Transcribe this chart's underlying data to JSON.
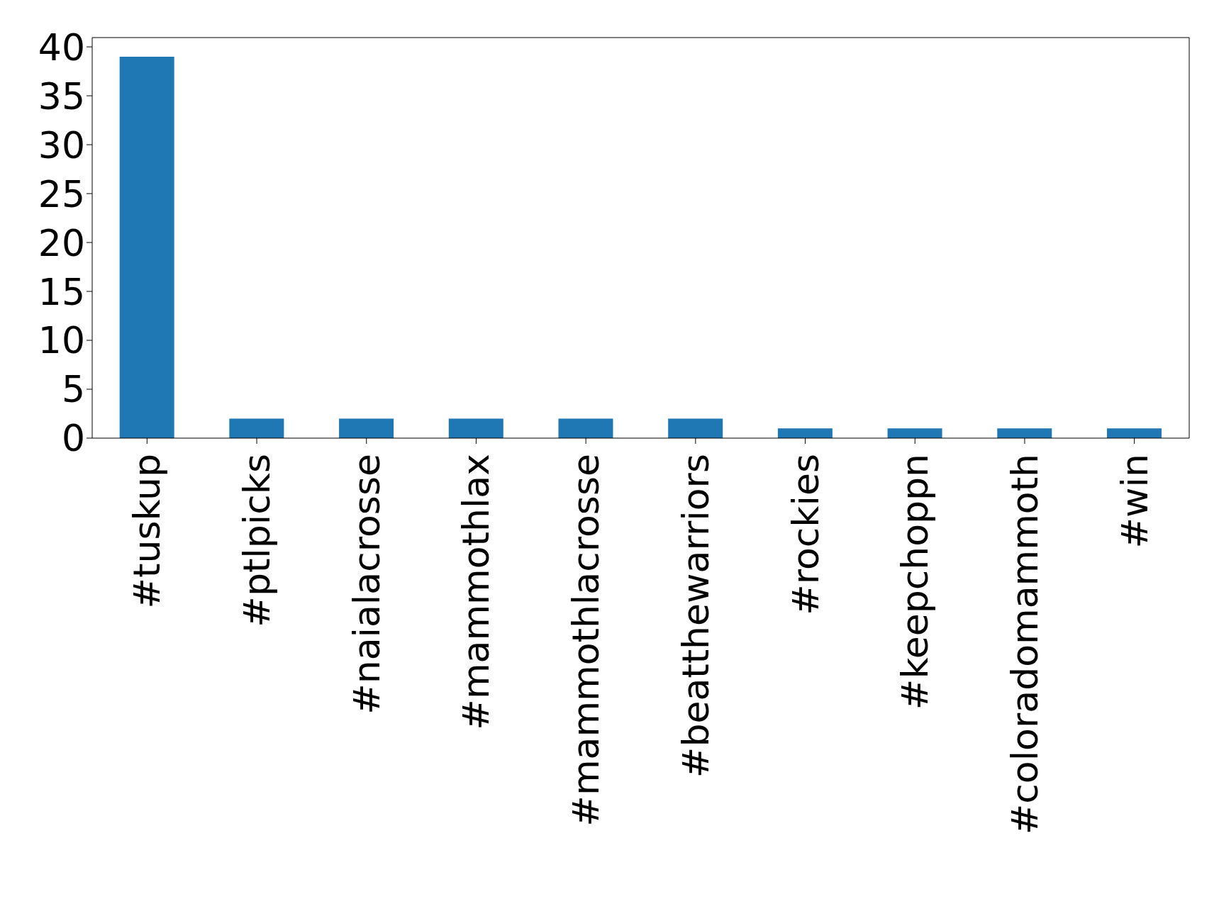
{
  "chart_data": {
    "type": "bar",
    "categories": [
      "#tuskup",
      "#ptlpicks",
      "#naialacrosse",
      "#mammothlax",
      "#mammothlacrosse",
      "#beatthewarriors",
      "#rockies",
      "#keepchoppn",
      "#coloradomammoth",
      "#win"
    ],
    "values": [
      39,
      2,
      2,
      2,
      2,
      2,
      1,
      1,
      1,
      1
    ],
    "color": "#1f77b4",
    "ylim": [
      0,
      40.95
    ],
    "yticks": [
      0,
      5,
      10,
      15,
      20,
      25,
      30,
      35,
      40
    ],
    "grid": false,
    "legend": false
  }
}
